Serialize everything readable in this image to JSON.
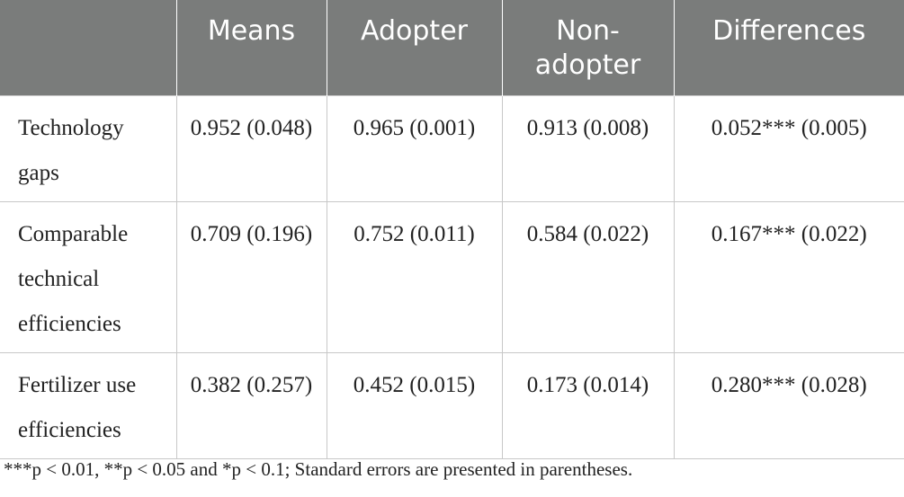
{
  "table": {
    "headers": [
      "",
      "Means",
      "Adopter",
      "Non-adopter",
      "Differences"
    ],
    "header_display": [
      "",
      "Means",
      "Adopter",
      "Non-\nadopter",
      "Differences"
    ],
    "rows": [
      {
        "label": "Technology gaps",
        "means": "0.952 (0.048)",
        "adopter": "0.965 (0.001)",
        "non_adopter": "0.913 (0.008)",
        "differences": "0.052*** (0.005)"
      },
      {
        "label": "Comparable technical efficiencies",
        "means": "0.709 (0.196)",
        "adopter": "0.752 (0.011)",
        "non_adopter": "0.584 (0.022)",
        "differences": "0.167*** (0.022)"
      },
      {
        "label": "Fertilizer use efficiencies",
        "means": "0.382 (0.257)",
        "adopter": "0.452 (0.015)",
        "non_adopter": "0.173 (0.014)",
        "differences": "0.280*** (0.028)"
      }
    ]
  },
  "footnote": "***p < 0.01, **p < 0.05 and *p < 0.1; Standard errors are presented in parentheses."
}
